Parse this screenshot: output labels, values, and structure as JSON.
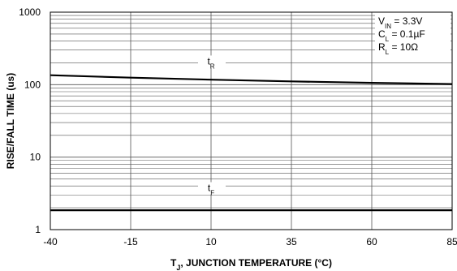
{
  "chart_data": {
    "type": "line",
    "title": "",
    "xlabel": "T_J, JUNCTION TEMPERATURE (°C)",
    "xlabel_parts": {
      "main": "T",
      "sub": "J",
      "rest": ", JUNCTION TEMPERATURE (°C)"
    },
    "ylabel": "RISE/FALL TIME (us)",
    "x_scale": "linear",
    "y_scale": "log",
    "xlim": [
      -40,
      85
    ],
    "ylim": [
      1,
      1000
    ],
    "x_ticks": [
      -40,
      -15,
      10,
      35,
      60,
      85
    ],
    "y_ticks": [
      1,
      10,
      100,
      1000
    ],
    "grid": true,
    "series": [
      {
        "name": "tR",
        "label_main": "t",
        "label_sub": "R",
        "label_x": 10,
        "label_y": 190,
        "x": [
          -40,
          -15,
          10,
          35,
          60,
          85
        ],
        "y": [
          135,
          125,
          117,
          111,
          106,
          102
        ]
      },
      {
        "name": "tF",
        "label_main": "t",
        "label_sub": "F",
        "label_x": 10,
        "label_y": 3.4,
        "x": [
          -40,
          -15,
          10,
          35,
          60,
          85
        ],
        "y": [
          1.85,
          1.85,
          1.85,
          1.85,
          1.85,
          1.85
        ]
      }
    ],
    "annotations": [
      {
        "main": "V",
        "sub": "IN",
        "rest": " = 3.3V"
      },
      {
        "main": "C",
        "sub": "L",
        "rest": " = 0.1µF"
      },
      {
        "main": "R",
        "sub": "L",
        "rest": " = 10Ω"
      }
    ],
    "annotation_placement": "top-right"
  }
}
